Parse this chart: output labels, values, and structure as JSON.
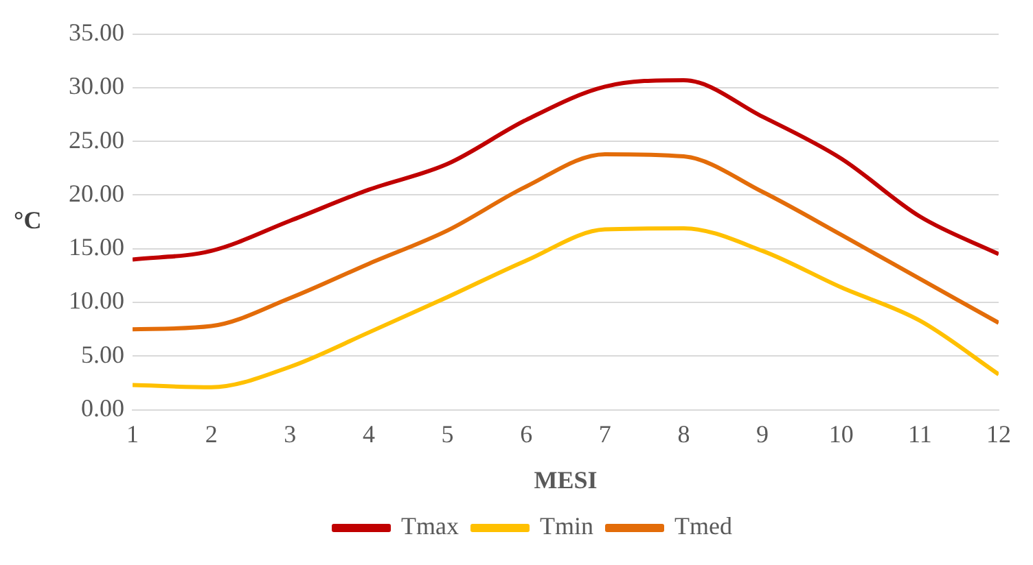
{
  "chart_data": {
    "type": "line",
    "xlabel": "MESI",
    "ylabel": "°C",
    "x": [
      1,
      2,
      3,
      4,
      5,
      6,
      7,
      8,
      9,
      10,
      11,
      12
    ],
    "xlim": [
      1,
      12
    ],
    "xticks": [
      1,
      2,
      3,
      4,
      5,
      6,
      7,
      8,
      9,
      10,
      11,
      12
    ],
    "series": [
      {
        "name": "Tmax",
        "color": "#c00000",
        "values": [
          14.0,
          14.8,
          17.6,
          20.5,
          22.9,
          27.0,
          30.1,
          30.7,
          27.3,
          23.4,
          18.0,
          14.5
        ]
      },
      {
        "name": "Tmin",
        "color": "#ffc000",
        "values": [
          2.3,
          2.1,
          4.0,
          7.2,
          10.5,
          13.9,
          16.8,
          16.9,
          14.8,
          11.4,
          8.3,
          3.3
        ]
      },
      {
        "name": "Tmed",
        "color": "#e36c09",
        "values": [
          7.5,
          7.8,
          10.4,
          13.6,
          16.7,
          20.8,
          23.8,
          23.6,
          20.3,
          16.3,
          12.2,
          8.1
        ]
      }
    ],
    "ylim": [
      0,
      35
    ],
    "yticks": [
      {
        "value": 0,
        "label": "0.00"
      },
      {
        "value": 5,
        "label": "5.00"
      },
      {
        "value": 10,
        "label": "10.00"
      },
      {
        "value": 15,
        "label": "15.00"
      },
      {
        "value": 20,
        "label": "20.00"
      },
      {
        "value": 25,
        "label": "25.00"
      },
      {
        "value": 30,
        "label": "30.00"
      },
      {
        "value": 35,
        "label": "35.00"
      }
    ],
    "grid": "y",
    "legend": "bottom",
    "marker": "none",
    "line_style": "solid"
  }
}
